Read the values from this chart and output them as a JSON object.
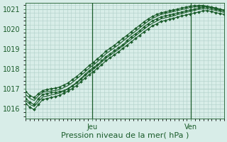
{
  "title": "",
  "xlabel": "Pression niveau de la mer( hPa )",
  "ylabel": "",
  "bg_color": "#d8ede8",
  "grid_color": "#b0d0c8",
  "line_color": "#1a5c2a",
  "ylim": [
    1015.5,
    1021.3
  ],
  "xlim": [
    0,
    48
  ],
  "yticks": [
    1016,
    1017,
    1018,
    1019,
    1020,
    1021
  ],
  "xtick_positions": [
    16,
    40
  ],
  "xtick_labels": [
    "Jeu",
    "Ven"
  ],
  "vline_positions": [
    16,
    40
  ],
  "series": [
    [
      1016.5,
      1016.3,
      1016.2,
      1016.5,
      1016.7,
      1016.75,
      1016.8,
      1016.8,
      1016.85,
      1016.9,
      1017.0,
      1017.15,
      1017.3,
      1017.5,
      1017.7,
      1017.9,
      1018.05,
      1018.2,
      1018.4,
      1018.6,
      1018.75,
      1018.9,
      1019.05,
      1019.2,
      1019.4,
      1019.6,
      1019.75,
      1019.9,
      1020.1,
      1020.25,
      1020.4,
      1020.5,
      1020.6,
      1020.65,
      1020.7,
      1020.75,
      1020.8,
      1020.85,
      1020.9,
      1020.95,
      1021.0,
      1021.05,
      1021.1,
      1021.1,
      1021.05,
      1021.0,
      1020.95,
      1020.9
    ],
    [
      1016.7,
      1016.5,
      1016.4,
      1016.65,
      1016.82,
      1016.85,
      1016.88,
      1016.9,
      1016.95,
      1017.05,
      1017.15,
      1017.3,
      1017.48,
      1017.65,
      1017.83,
      1018.02,
      1018.18,
      1018.35,
      1018.55,
      1018.75,
      1018.9,
      1019.05,
      1019.2,
      1019.38,
      1019.55,
      1019.72,
      1019.88,
      1020.05,
      1020.22,
      1020.38,
      1020.52,
      1020.62,
      1020.72,
      1020.77,
      1020.82,
      1020.87,
      1020.92,
      1020.97,
      1021.02,
      1021.07,
      1021.1,
      1021.12,
      1021.13,
      1021.1,
      1021.06,
      1021.02,
      1020.97,
      1020.93
    ],
    [
      1016.85,
      1016.65,
      1016.55,
      1016.75,
      1016.9,
      1016.95,
      1017.0,
      1017.02,
      1017.08,
      1017.18,
      1017.28,
      1017.45,
      1017.6,
      1017.78,
      1017.97,
      1018.15,
      1018.32,
      1018.5,
      1018.68,
      1018.88,
      1019.03,
      1019.18,
      1019.35,
      1019.52,
      1019.68,
      1019.85,
      1020.02,
      1020.18,
      1020.35,
      1020.5,
      1020.62,
      1020.72,
      1020.8,
      1020.85,
      1020.9,
      1020.95,
      1021.0,
      1021.05,
      1021.1,
      1021.14,
      1021.17,
      1021.18,
      1021.18,
      1021.14,
      1021.1,
      1021.05,
      1021.0,
      1020.95
    ],
    [
      1016.4,
      1016.2,
      1016.1,
      1016.35,
      1016.58,
      1016.62,
      1016.68,
      1016.72,
      1016.78,
      1016.88,
      1016.98,
      1017.12,
      1017.27,
      1017.45,
      1017.65,
      1017.83,
      1017.98,
      1018.15,
      1018.33,
      1018.53,
      1018.68,
      1018.82,
      1018.98,
      1019.15,
      1019.32,
      1019.48,
      1019.65,
      1019.82,
      1019.98,
      1020.14,
      1020.28,
      1020.38,
      1020.5,
      1020.55,
      1020.6,
      1020.65,
      1020.72,
      1020.77,
      1020.83,
      1020.88,
      1020.93,
      1020.98,
      1021.02,
      1021.02,
      1020.97,
      1020.93,
      1020.88,
      1020.83
    ],
    [
      1016.25,
      1016.05,
      1015.95,
      1016.2,
      1016.45,
      1016.5,
      1016.55,
      1016.6,
      1016.67,
      1016.77,
      1016.87,
      1017.0,
      1017.15,
      1017.33,
      1017.52,
      1017.7,
      1017.85,
      1018.02,
      1018.2,
      1018.4,
      1018.55,
      1018.7,
      1018.85,
      1019.02,
      1019.18,
      1019.35,
      1019.52,
      1019.68,
      1019.85,
      1020.0,
      1020.15,
      1020.25,
      1020.37,
      1020.42,
      1020.48,
      1020.53,
      1020.6,
      1020.65,
      1020.7,
      1020.75,
      1020.8,
      1020.85,
      1020.9,
      1020.92,
      1020.87,
      1020.82,
      1020.77,
      1020.72
    ]
  ],
  "marker_series": [
    0,
    2,
    4
  ],
  "marker": "D",
  "marker_size": 2.0,
  "linewidth": 0.8
}
